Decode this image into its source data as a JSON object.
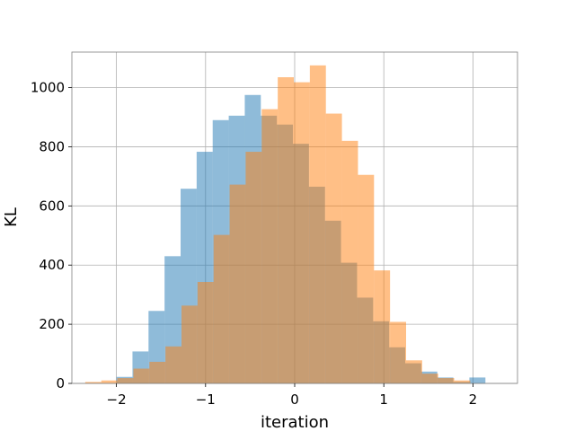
{
  "chart_data": {
    "type": "histogram",
    "title": "",
    "xlabel": "iteration",
    "ylabel": "KL",
    "xlim": [
      -2.5,
      2.5
    ],
    "ylim": [
      0,
      1120
    ],
    "grid": true,
    "x_ticks": [
      -2,
      -1,
      0,
      1,
      2
    ],
    "y_ticks": [
      0,
      200,
      400,
      600,
      800,
      1000
    ],
    "series": [
      {
        "color": "#1f77b4",
        "opacity": 0.5,
        "bins": [
          {
            "x0": -2.0,
            "x1": -1.82,
            "count": 22
          },
          {
            "x0": -1.82,
            "x1": -1.64,
            "count": 108
          },
          {
            "x0": -1.64,
            "x1": -1.46,
            "count": 245
          },
          {
            "x0": -1.46,
            "x1": -1.28,
            "count": 430
          },
          {
            "x0": -1.28,
            "x1": -1.1,
            "count": 658
          },
          {
            "x0": -1.1,
            "x1": -0.92,
            "count": 783
          },
          {
            "x0": -0.92,
            "x1": -0.74,
            "count": 890
          },
          {
            "x0": -0.74,
            "x1": -0.56,
            "count": 905
          },
          {
            "x0": -0.56,
            "x1": -0.38,
            "count": 975
          },
          {
            "x0": -0.38,
            "x1": -0.2,
            "count": 905
          },
          {
            "x0": -0.2,
            "x1": -0.02,
            "count": 875
          },
          {
            "x0": -0.02,
            "x1": 0.16,
            "count": 810
          },
          {
            "x0": 0.16,
            "x1": 0.34,
            "count": 665
          },
          {
            "x0": 0.34,
            "x1": 0.52,
            "count": 550
          },
          {
            "x0": 0.52,
            "x1": 0.7,
            "count": 408
          },
          {
            "x0": 0.7,
            "x1": 0.88,
            "count": 290
          },
          {
            "x0": 0.88,
            "x1": 1.06,
            "count": 210
          },
          {
            "x0": 1.06,
            "x1": 1.24,
            "count": 122
          },
          {
            "x0": 1.24,
            "x1": 1.42,
            "count": 68
          },
          {
            "x0": 1.42,
            "x1": 1.6,
            "count": 40
          },
          {
            "x0": 1.6,
            "x1": 1.78,
            "count": 20
          },
          {
            "x0": 1.78,
            "x1": 1.96,
            "count": 5
          },
          {
            "x0": 1.96,
            "x1": 2.14,
            "count": 20
          }
        ]
      },
      {
        "color": "#ff7f0e",
        "opacity": 0.5,
        "bins": [
          {
            "x0": -2.35,
            "x1": -2.17,
            "count": 5
          },
          {
            "x0": -2.17,
            "x1": -1.99,
            "count": 10
          },
          {
            "x0": -1.99,
            "x1": -1.81,
            "count": 18
          },
          {
            "x0": -1.81,
            "x1": -1.63,
            "count": 50
          },
          {
            "x0": -1.63,
            "x1": -1.45,
            "count": 73
          },
          {
            "x0": -1.45,
            "x1": -1.27,
            "count": 125
          },
          {
            "x0": -1.27,
            "x1": -1.09,
            "count": 263
          },
          {
            "x0": -1.09,
            "x1": -0.91,
            "count": 343
          },
          {
            "x0": -0.91,
            "x1": -0.73,
            "count": 502
          },
          {
            "x0": -0.73,
            "x1": -0.55,
            "count": 672
          },
          {
            "x0": -0.55,
            "x1": -0.37,
            "count": 783
          },
          {
            "x0": -0.37,
            "x1": -0.19,
            "count": 927
          },
          {
            "x0": -0.19,
            "x1": -0.01,
            "count": 1035
          },
          {
            "x0": -0.01,
            "x1": 0.17,
            "count": 1018
          },
          {
            "x0": 0.17,
            "x1": 0.35,
            "count": 1075
          },
          {
            "x0": 0.35,
            "x1": 0.53,
            "count": 912
          },
          {
            "x0": 0.53,
            "x1": 0.71,
            "count": 820
          },
          {
            "x0": 0.71,
            "x1": 0.89,
            "count": 705
          },
          {
            "x0": 0.89,
            "x1": 1.07,
            "count": 382
          },
          {
            "x0": 1.07,
            "x1": 1.25,
            "count": 208
          },
          {
            "x0": 1.25,
            "x1": 1.43,
            "count": 78
          },
          {
            "x0": 1.43,
            "x1": 1.61,
            "count": 33
          },
          {
            "x0": 1.61,
            "x1": 1.79,
            "count": 18
          },
          {
            "x0": 1.79,
            "x1": 1.97,
            "count": 10
          }
        ]
      }
    ]
  }
}
